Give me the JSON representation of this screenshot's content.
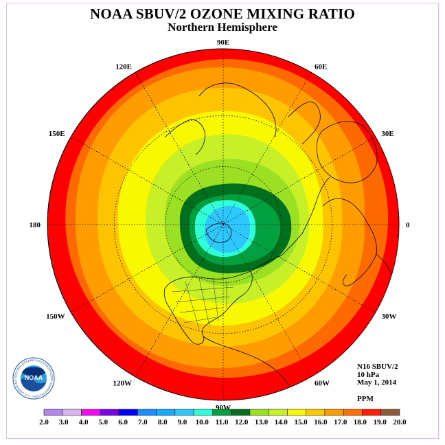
{
  "title": "NOAA SBUV/2 OZONE MIXING RATIO",
  "subtitle": "Northern Hemisphere",
  "longitude_labels": [
    {
      "text": "90E",
      "lon": 90
    },
    {
      "text": "60E",
      "lon": 60
    },
    {
      "text": "30E",
      "lon": 30
    },
    {
      "text": "0",
      "lon": 0
    },
    {
      "text": "30W",
      "lon": -30
    },
    {
      "text": "60W",
      "lon": -60
    },
    {
      "text": "90W",
      "lon": -90
    },
    {
      "text": "120W",
      "lon": -120
    },
    {
      "text": "150W",
      "lon": -150
    },
    {
      "text": "180",
      "lon": 180
    },
    {
      "text": "150E",
      "lon": 150
    },
    {
      "text": "120E",
      "lon": 120
    }
  ],
  "info": {
    "satellite": "N16 SBUV/2",
    "level": "10 hPa",
    "date": "May 1, 2014",
    "units": "PPM"
  },
  "logo": {
    "text": "NOAA",
    "ring_text": "NATIONAL OCEANIC AND ATMOSPHERIC ADMINISTRATION · U.S. DEPARTMENT OF COMMERCE ·"
  },
  "colorbar": {
    "labels": [
      "2.0",
      "3.0",
      "4.0",
      "5.0",
      "6.0",
      "7.0",
      "8.0",
      "9.0",
      "10.0",
      "11.0",
      "12.0",
      "13.0",
      "14.0",
      "15.0",
      "16.0",
      "17.0",
      "18.0",
      "19.0",
      "20.0"
    ],
    "colors": [
      "#b486ea",
      "#dcb4f0",
      "#f00cf0",
      "#7a00e6",
      "#0000ff",
      "#1a8cff",
      "#18aaff",
      "#2cc8ff",
      "#30ffd8",
      "#00a040",
      "#00701e",
      "#9ce024",
      "#c8f028",
      "#f8f800",
      "#ffc800",
      "#ff9c00",
      "#ff7000",
      "#ff2000",
      "#8c5a3c"
    ]
  },
  "contour_levels": [
    {
      "value": 19.0,
      "color": "#ff0000"
    },
    {
      "value": 18.0,
      "color": "#ff6a00"
    },
    {
      "value": 17.0,
      "color": "#ff9c00"
    },
    {
      "value": 16.0,
      "color": "#ffc400"
    },
    {
      "value": 15.0,
      "color": "#f8f800"
    },
    {
      "value": 14.0,
      "color": "#c8f028"
    },
    {
      "value": 13.0,
      "color": "#9ce024"
    },
    {
      "value": 12.0,
      "color": "#00701e"
    },
    {
      "value": 11.0,
      "color": "#00a040"
    },
    {
      "value": 10.0,
      "color": "#30ffd8"
    },
    {
      "value": 9.0,
      "color": "#2cc8ff"
    }
  ]
}
